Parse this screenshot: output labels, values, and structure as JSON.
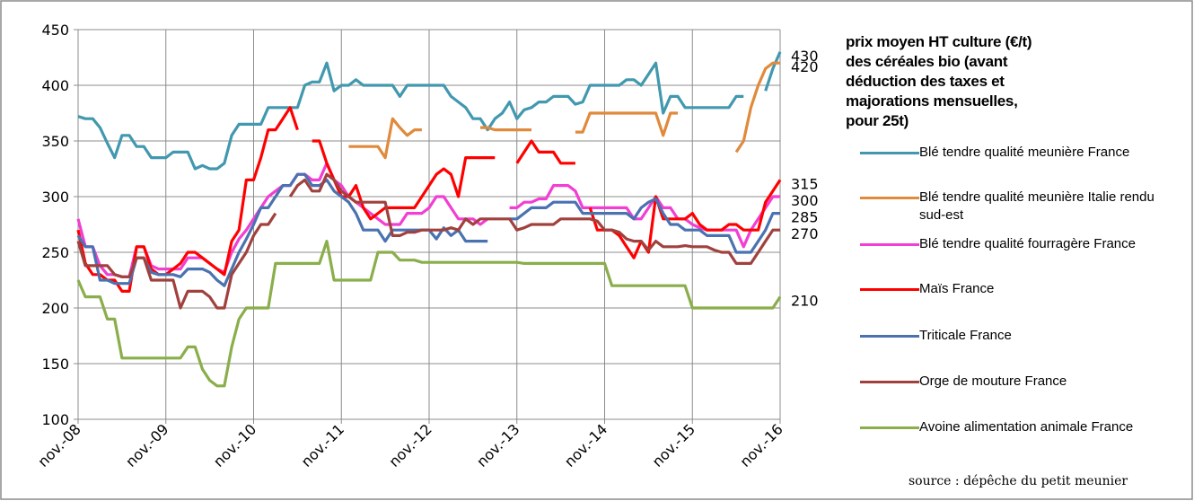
{
  "chart_data": {
    "type": "line",
    "title": "prix moyen HT culture  (€/t) des céréales bio (avant déduction des taxes et majorations mensuelles, pour 25t)",
    "source": "source : dépêche du petit meunier",
    "categories": [
      "nov.-08",
      null,
      null,
      null,
      null,
      null,
      null,
      null,
      null,
      null,
      null,
      null,
      "nov.-09",
      null,
      null,
      null,
      null,
      null,
      null,
      null,
      null,
      null,
      null,
      null,
      "nov.-10",
      null,
      null,
      null,
      null,
      null,
      null,
      null,
      null,
      null,
      null,
      null,
      "nov.-11",
      null,
      null,
      null,
      null,
      null,
      null,
      null,
      null,
      null,
      null,
      null,
      "nov.-12",
      null,
      null,
      null,
      null,
      null,
      null,
      null,
      null,
      null,
      null,
      null,
      "nov.-13",
      null,
      null,
      null,
      null,
      null,
      null,
      null,
      null,
      null,
      null,
      null,
      "nov.-14",
      null,
      null,
      null,
      null,
      null,
      null,
      null,
      null,
      null,
      null,
      null,
      "nov.-15",
      null,
      null,
      null,
      null,
      null,
      null,
      null,
      null,
      null,
      null,
      null,
      "nov.-16"
    ],
    "ylim": [
      100,
      450
    ],
    "yticks": [
      100,
      150,
      200,
      250,
      300,
      350,
      400,
      450
    ],
    "grid": true,
    "series": [
      {
        "name": "Blé tendre qualité meunière France",
        "color": "#4198af",
        "values": [
          372,
          370,
          370,
          362,
          348,
          335,
          355,
          355,
          345,
          345,
          335,
          335,
          335,
          340,
          340,
          340,
          325,
          328,
          325,
          325,
          330,
          355,
          365,
          365,
          365,
          365,
          380,
          380,
          380,
          380,
          380,
          400,
          403,
          403,
          420,
          395,
          400,
          400,
          405,
          400,
          400,
          400,
          400,
          400,
          390,
          400,
          400,
          400,
          400,
          400,
          400,
          390,
          385,
          380,
          370,
          370,
          360,
          370,
          375,
          385,
          370,
          378,
          380,
          385,
          385,
          390,
          390,
          390,
          383,
          385,
          400,
          400,
          400,
          400,
          400,
          405,
          405,
          400,
          410,
          420,
          375,
          390,
          390,
          380,
          380,
          380,
          380,
          380,
          380,
          380,
          390,
          390,
          null,
          null,
          395,
          415,
          430
        ]
      },
      {
        "name": "Blé tendre qualité meunière Italie rendu sud-est",
        "color": "#e08a3c",
        "values": [
          null,
          null,
          null,
          null,
          null,
          null,
          null,
          null,
          null,
          null,
          null,
          null,
          null,
          null,
          null,
          null,
          null,
          null,
          null,
          null,
          null,
          null,
          null,
          null,
          null,
          null,
          null,
          null,
          null,
          null,
          null,
          null,
          null,
          null,
          null,
          null,
          null,
          345,
          345,
          345,
          345,
          345,
          335,
          370,
          362,
          355,
          360,
          360,
          null,
          null,
          null,
          null,
          null,
          null,
          null,
          362,
          362,
          360,
          360,
          360,
          360,
          360,
          360,
          null,
          null,
          null,
          null,
          null,
          358,
          358,
          375,
          375,
          375,
          375,
          375,
          375,
          375,
          375,
          375,
          375,
          355,
          375,
          375,
          null,
          null,
          null,
          null,
          null,
          null,
          null,
          340,
          350,
          380,
          400,
          415,
          420,
          420
        ]
      },
      {
        "name": "Blé tendre qualité fourragère France",
        "color": "#f23ed2",
        "values": [
          280,
          255,
          255,
          238,
          230,
          230,
          228,
          228,
          255,
          255,
          238,
          235,
          235,
          235,
          235,
          245,
          245,
          245,
          240,
          235,
          232,
          250,
          262,
          270,
          280,
          290,
          300,
          305,
          310,
          310,
          320,
          320,
          315,
          315,
          330,
          315,
          310,
          300,
          295,
          290,
          285,
          280,
          275,
          275,
          275,
          285,
          285,
          285,
          290,
          300,
          300,
          290,
          280,
          280,
          280,
          275,
          280,
          null,
          null,
          290,
          290,
          295,
          295,
          298,
          298,
          310,
          310,
          310,
          305,
          290,
          290,
          290,
          290,
          290,
          290,
          290,
          280,
          280,
          290,
          300,
          290,
          290,
          280,
          280,
          275,
          272,
          270,
          270,
          270,
          270,
          270,
          255,
          270,
          280,
          290,
          300,
          300
        ]
      },
      {
        "name": "Maïs France",
        "color": "#ff0000",
        "values": [
          270,
          240,
          230,
          230,
          225,
          225,
          215,
          215,
          255,
          255,
          235,
          230,
          230,
          235,
          240,
          250,
          250,
          245,
          240,
          235,
          230,
          260,
          270,
          315,
          315,
          335,
          360,
          360,
          370,
          380,
          360,
          null,
          350,
          350,
          330,
          315,
          300,
          300,
          310,
          290,
          280,
          285,
          290,
          290,
          290,
          290,
          290,
          300,
          310,
          320,
          325,
          320,
          300,
          335,
          335,
          335,
          335,
          335,
          null,
          null,
          330,
          340,
          350,
          340,
          340,
          340,
          330,
          330,
          330,
          null,
          290,
          270,
          270,
          270,
          265,
          255,
          245,
          260,
          250,
          300,
          280,
          280,
          280,
          280,
          285,
          275,
          270,
          270,
          270,
          275,
          275,
          270,
          270,
          270,
          295,
          305,
          315
        ]
      },
      {
        "name": "Triticale France",
        "color": "#4a72b0",
        "values": [
          265,
          255,
          255,
          225,
          225,
          222,
          222,
          222,
          245,
          245,
          232,
          230,
          230,
          230,
          228,
          235,
          235,
          235,
          232,
          225,
          220,
          235,
          250,
          262,
          275,
          290,
          290,
          300,
          310,
          310,
          320,
          320,
          310,
          310,
          315,
          305,
          300,
          295,
          285,
          270,
          270,
          270,
          260,
          270,
          270,
          270,
          270,
          270,
          270,
          262,
          272,
          265,
          270,
          260,
          260,
          260,
          260,
          null,
          null,
          280,
          280,
          285,
          290,
          290,
          290,
          295,
          295,
          295,
          295,
          285,
          285,
          285,
          285,
          285,
          285,
          285,
          280,
          290,
          295,
          298,
          285,
          275,
          275,
          270,
          270,
          270,
          265,
          265,
          265,
          265,
          250,
          250,
          250,
          260,
          270,
          285,
          285
        ]
      },
      {
        "name": "Orge de mouture  France",
        "color": "#a0413e",
        "values": [
          260,
          238,
          238,
          238,
          238,
          230,
          228,
          228,
          245,
          245,
          225,
          225,
          225,
          225,
          200,
          215,
          215,
          215,
          210,
          200,
          200,
          230,
          240,
          250,
          265,
          275,
          275,
          285,
          null,
          300,
          310,
          315,
          305,
          305,
          320,
          315,
          305,
          300,
          295,
          295,
          295,
          295,
          295,
          265,
          265,
          268,
          268,
          270,
          270,
          270,
          270,
          272,
          270,
          280,
          275,
          280,
          280,
          280,
          280,
          280,
          270,
          272,
          275,
          275,
          275,
          275,
          280,
          280,
          280,
          280,
          280,
          278,
          270,
          270,
          268,
          262,
          260,
          260,
          252,
          260,
          255,
          255,
          255,
          256,
          255,
          255,
          255,
          252,
          250,
          250,
          240,
          240,
          240,
          250,
          260,
          270,
          270
        ]
      },
      {
        "name": "Avoine alimentation animale France",
        "color": "#8aae4a",
        "values": [
          225,
          210,
          210,
          210,
          190,
          190,
          155,
          155,
          155,
          155,
          155,
          155,
          155,
          155,
          155,
          165,
          165,
          145,
          135,
          130,
          130,
          165,
          190,
          200,
          200,
          200,
          200,
          240,
          240,
          240,
          240,
          240,
          240,
          240,
          260,
          225,
          225,
          225,
          225,
          225,
          225,
          250,
          250,
          250,
          243,
          243,
          243,
          241,
          241,
          241,
          241,
          241,
          241,
          241,
          241,
          241,
          241,
          241,
          241,
          241,
          241,
          240,
          240,
          240,
          240,
          240,
          240,
          240,
          240,
          240,
          240,
          240,
          240,
          220,
          220,
          220,
          220,
          220,
          220,
          220,
          220,
          220,
          220,
          220,
          200,
          200,
          200,
          200,
          200,
          200,
          200,
          200,
          200,
          200,
          200,
          200,
          210
        ]
      }
    ]
  }
}
